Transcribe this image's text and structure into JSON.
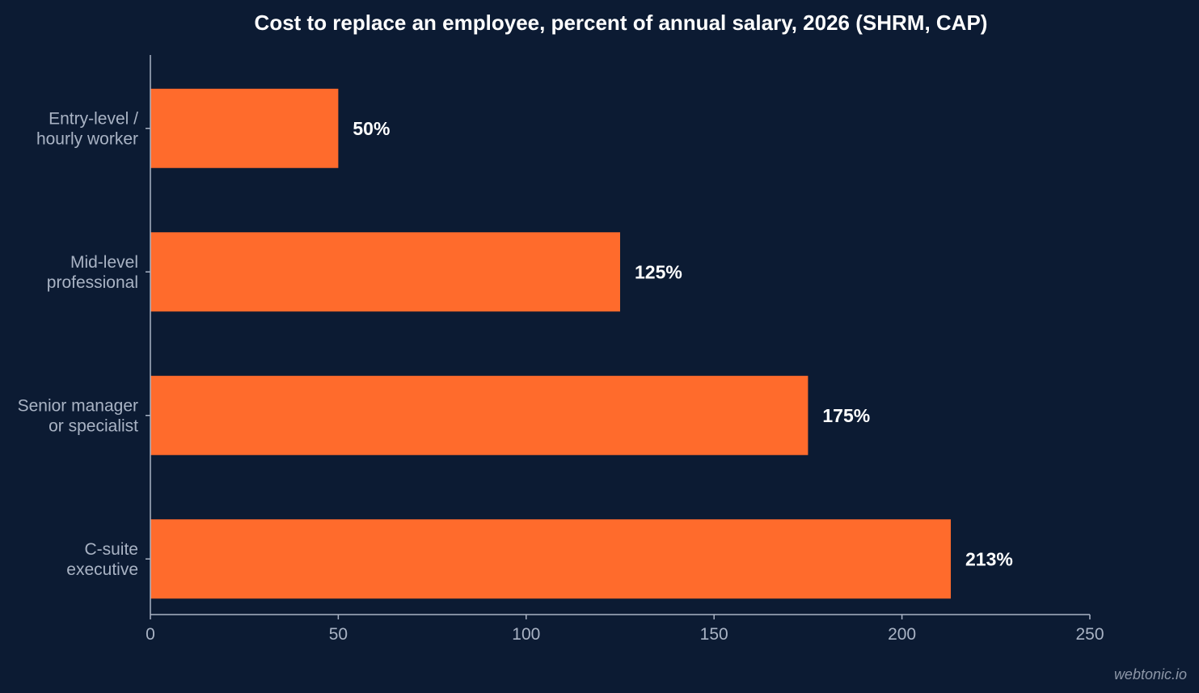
{
  "chart_data": {
    "type": "bar",
    "orientation": "horizontal",
    "title": "Cost to replace an employee, percent of annual salary, 2026 (SHRM, CAP)",
    "categories": [
      [
        "Entry-level /",
        "hourly worker"
      ],
      [
        "Mid-level",
        "professional"
      ],
      [
        "Senior manager",
        "or specialist"
      ],
      [
        "C-suite",
        "executive"
      ]
    ],
    "values": [
      50,
      125,
      175,
      213
    ],
    "data_labels": [
      "50%",
      "125%",
      "175%",
      "213%"
    ],
    "xlim": [
      0,
      250
    ],
    "xticks": [
      0,
      50,
      100,
      150,
      200,
      250
    ],
    "xlabel": "",
    "ylabel": "",
    "grid": false,
    "legend": "none",
    "colors": {
      "background": "#0c1b33",
      "bar": "#ff6b2c",
      "axis": "#a9b3c4",
      "title": "#ffffff"
    }
  },
  "watermark": "webtonic.io"
}
